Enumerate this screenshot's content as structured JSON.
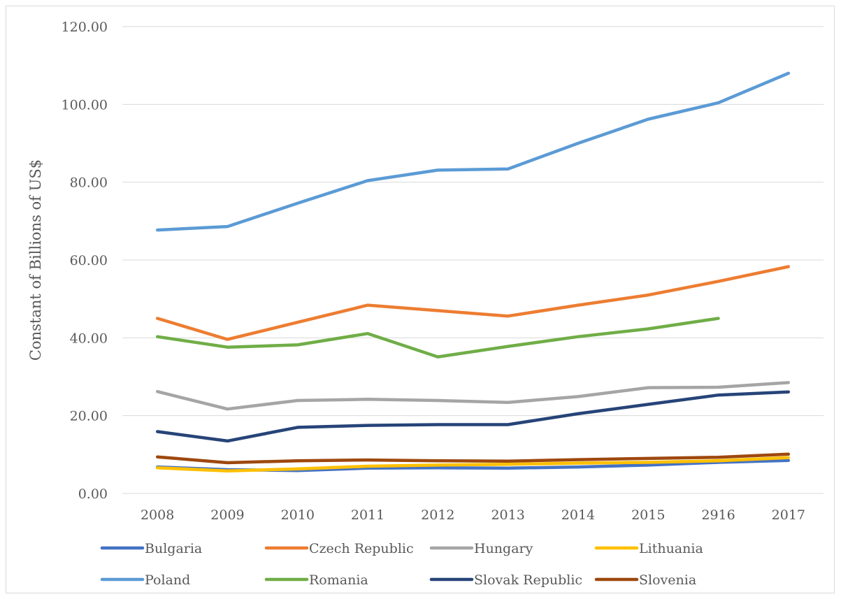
{
  "chart_data": {
    "type": "line",
    "title": "",
    "xlabel": "",
    "ylabel": "Constant of Billions of US$",
    "ylim": [
      0,
      120
    ],
    "yticks": [
      "0.00",
      "20.00",
      "40.00",
      "60.00",
      "80.00",
      "100.00",
      "120.00"
    ],
    "categories": [
      "2008",
      "2009",
      "2010",
      "2011",
      "2012",
      "2013",
      "2014",
      "2015",
      "2916",
      "2017"
    ],
    "grid": "horizontal",
    "legend_position": "bottom",
    "series": [
      {
        "name": "Bulgaria",
        "color": "#4472c4",
        "values": [
          6.8,
          6.1,
          5.9,
          6.5,
          6.6,
          6.5,
          6.8,
          7.3,
          8.0,
          8.5
        ]
      },
      {
        "name": "Czech Republic",
        "color": "#ed7d31",
        "values": [
          45.0,
          39.6,
          44.0,
          48.4,
          47.0,
          45.6,
          48.4,
          51.0,
          54.5,
          58.3
        ]
      },
      {
        "name": "Hungary",
        "color": "#a5a5a5",
        "values": [
          26.2,
          21.7,
          23.9,
          24.2,
          23.9,
          23.4,
          24.9,
          27.2,
          27.3,
          28.5
        ]
      },
      {
        "name": "Lithuania",
        "color": "#ffc000",
        "values": [
          6.6,
          5.8,
          6.3,
          7.0,
          7.3,
          7.5,
          7.8,
          8.0,
          8.4,
          9.2
        ]
      },
      {
        "name": "Poland",
        "color": "#5b9bd5",
        "values": [
          67.7,
          68.6,
          74.6,
          80.4,
          83.1,
          83.4,
          90.0,
          96.2,
          100.4,
          108.0
        ]
      },
      {
        "name": "Romania",
        "color": "#70ad47",
        "values": [
          40.3,
          37.6,
          38.2,
          41.1,
          35.1,
          37.8,
          40.3,
          42.3,
          45.0,
          null
        ]
      },
      {
        "name": "Slovak Republic",
        "color": "#264478",
        "values": [
          15.9,
          13.5,
          17.0,
          17.5,
          17.7,
          17.7,
          20.5,
          22.9,
          25.3,
          26.1
        ]
      },
      {
        "name": "Slovenia",
        "color": "#9e480e",
        "values": [
          9.4,
          7.9,
          8.4,
          8.6,
          8.4,
          8.3,
          8.7,
          9.0,
          9.3,
          10.1
        ]
      }
    ]
  }
}
